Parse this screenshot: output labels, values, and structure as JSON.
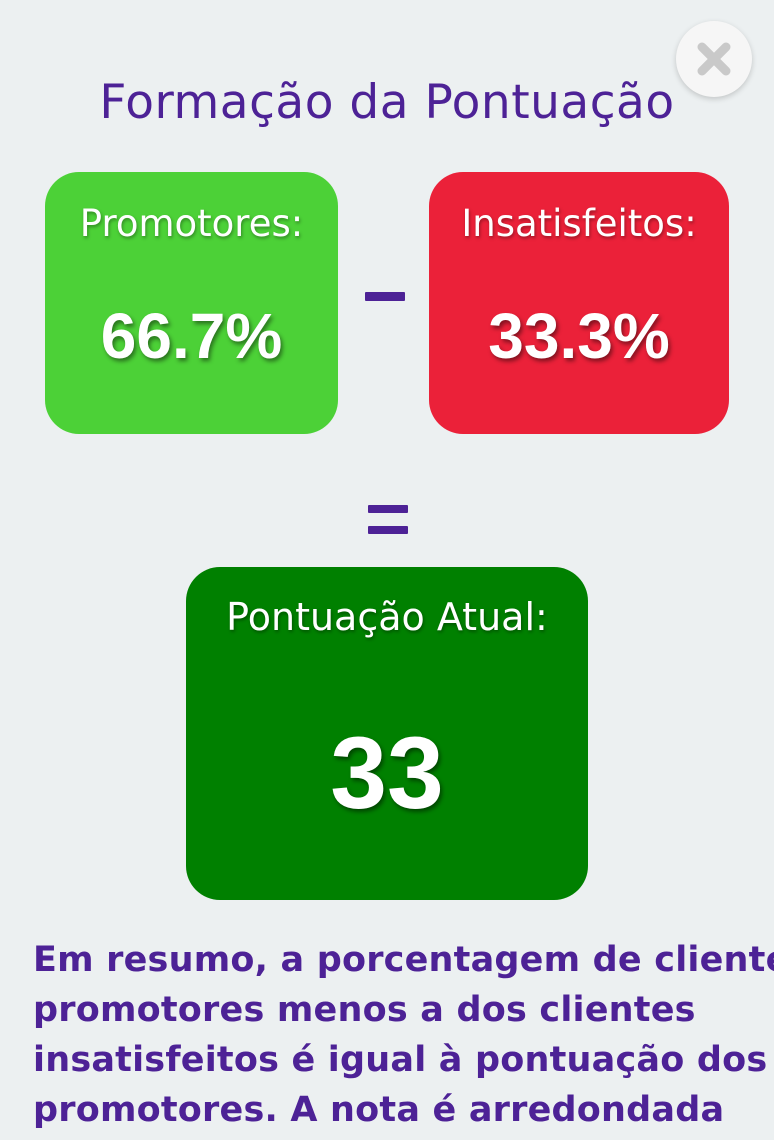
{
  "header": {
    "title": "Formação da Pontuação",
    "close_icon": "close-icon"
  },
  "promoters": {
    "label": "Promotores:",
    "value": "66.7%",
    "color": "#4cd137"
  },
  "operator_minus": "−",
  "detractors": {
    "label": "Insatisfeitos:",
    "value": "33.3%",
    "color": "#eb2139"
  },
  "operator_equals": "=",
  "score": {
    "label": "Pontuação Atual:",
    "value": "33",
    "color": "#008000"
  },
  "summary": {
    "lines": [
      "Em resumo, a porcentagem de clientes",
      "promotores menos a dos clientes",
      "insatisfeitos é igual à pontuação dos",
      "promotores. A nota é arredondada"
    ]
  },
  "colors": {
    "accent": "#4d2296",
    "background": "#ecf0f1"
  }
}
